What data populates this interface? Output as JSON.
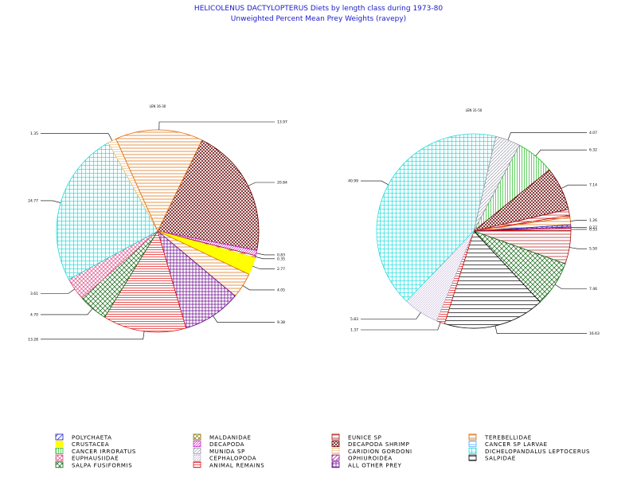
{
  "colors": {
    "POLYCHAETA": "#1a1acc",
    "CRUSTACEA": "#ffff00",
    "CANCER IRRORATUS": "#22bb22",
    "EUPHAUSIIDAE": "#e0508a",
    "SALPA FUSIFORMIS": "#116611",
    "MALDANIDAE": "#8a7a10",
    "DECAPODA": "#cc22cc",
    "MUNIDA SP": "#9999aa",
    "CEPHALOPODA": "#c8b8d8",
    "ANIMAL REMAINS": "#dd1111",
    "EUNICE SP": "#aa1111",
    "DECAPODA SHRIMP": "#660000",
    "CARIDION GORDONI": "#f0c080",
    "OPHIUROIDEA": "#880088",
    "ALL OTHER PREY": "#660088",
    "TEREBELLIDAE": "#dd6600",
    "CANCER SP LARVAE": "#44aaff",
    "DICHELOPANDALUS LEPTOCERUS": "#22dddd",
    "SALPIDAE": "#000000"
  },
  "chart_data": {
    "title": "HELICOLENUS DACTYLOPTERUS Diets by length class during 1973-80",
    "subtitle": "Unweighted Percent Mean Prey Weights (ravepy)",
    "type": "pie",
    "legend_position": "bottom",
    "legend": [
      "POLYCHAETA",
      "MALDANIDAE",
      "EUNICE SP",
      "TEREBELLIDAE",
      "CRUSTACEA",
      "DECAPODA",
      "DECAPODA SHRIMP",
      "CANCER SP LARVAE",
      "CANCER IRRORATUS",
      "MUNIDA SP",
      "CARIDION GORDONI",
      "DICHELOPANDALUS LEPTOCERUS",
      "EUPHAUSIIDAE",
      "CEPHALOPODA",
      "OPHIUROIDEA",
      "SALPIDAE",
      "SALPA FUSIFORMIS",
      "ANIMAL REMAINS",
      "ALL OTHER PREY"
    ],
    "pies": [
      {
        "header": "LEN 16-30",
        "slices": [
          {
            "label": "DECAPODA SHRIMP",
            "value": 20.84,
            "display": "20.84"
          },
          {
            "label": "DECAPODA",
            "value": 0.83,
            "display": "0.83"
          },
          {
            "label": "EUNICE SP",
            "value": 0.35,
            "display": "0.35"
          },
          {
            "label": "CRUSTACEA",
            "value": 2.77,
            "display": "2.77"
          },
          {
            "label": "TEREBELLIDAE",
            "value": 4.05,
            "display": "4.05"
          },
          {
            "label": "MALDANIDAE",
            "value": 0.0,
            "display": ""
          },
          {
            "label": "ALL OTHER PREY",
            "value": 9.38,
            "display": "9.38"
          },
          {
            "label": "ANIMAL REMAINS",
            "value": 13.28,
            "display": "13.28"
          },
          {
            "label": "SALPA FUSIFORMIS",
            "value": 4.7,
            "display": "4.70"
          },
          {
            "label": "EUPHAUSIIDAE",
            "value": 3.61,
            "display": "3.61"
          },
          {
            "label": "DICHELOPANDALUS LEPTOCERUS",
            "value": 24.77,
            "display": "24.77"
          },
          {
            "label": "CARIDION GORDONI",
            "value": 1.35,
            "display": "1.35"
          },
          {
            "label": "TEREBELLIDAE",
            "value": 13.97,
            "display": "13.97"
          }
        ]
      },
      {
        "header": "LEN 31-50",
        "slices": [
          {
            "label": "CANCER IRRORATUS",
            "value": 6.32,
            "display": "6.32"
          },
          {
            "label": "DECAPODA SHRIMP",
            "value": 7.14,
            "display": "7.14"
          },
          {
            "label": "EUNICE SP",
            "value": 1.0,
            "display": ""
          },
          {
            "label": "ANIMAL REMAINS",
            "value": 0.3,
            "display": ""
          },
          {
            "label": "TEREBELLIDAE",
            "value": 1.26,
            "display": "1.26"
          },
          {
            "label": "POLYCHAETA",
            "value": 0.3,
            "display": ""
          },
          {
            "label": "ALL OTHER PREY",
            "value": 0.27,
            "display": "0.27"
          },
          {
            "label": "ANIMAL REMAINS",
            "value": 0.33,
            "display": "0.33"
          },
          {
            "label": "EUNICE SP",
            "value": 5.5,
            "display": "5.50"
          },
          {
            "label": "SALPA FUSIFORMIS",
            "value": 7.46,
            "display": "7.46"
          },
          {
            "label": "SALPIDAE",
            "value": 16.63,
            "display": "16.63"
          },
          {
            "label": "ANIMAL REMAINS",
            "value": 1.37,
            "display": "1.37"
          },
          {
            "label": "CEPHALOPODA",
            "value": 5.83,
            "display": "5.83"
          },
          {
            "label": "DICHELOPANDALUS LEPTOCERUS",
            "value": 40.99,
            "display": "40.99"
          },
          {
            "label": "MUNIDA SP",
            "value": 4.07,
            "display": "4.07"
          }
        ]
      }
    ]
  }
}
